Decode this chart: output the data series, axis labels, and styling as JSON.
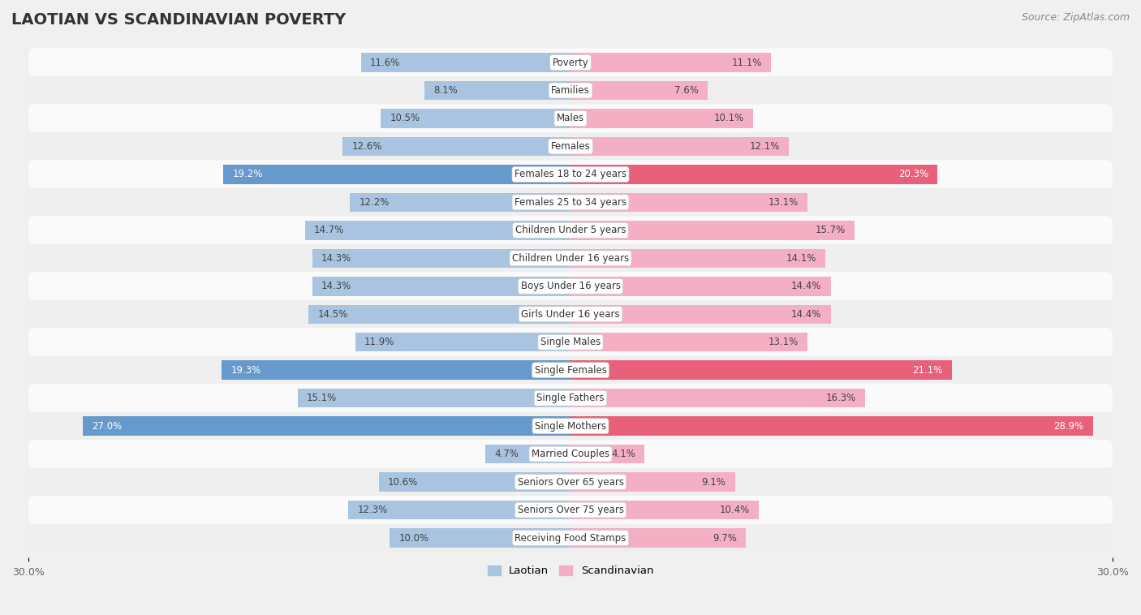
{
  "title": "LAOTIAN VS SCANDINAVIAN POVERTY",
  "source": "Source: ZipAtlas.com",
  "categories": [
    "Poverty",
    "Families",
    "Males",
    "Females",
    "Females 18 to 24 years",
    "Females 25 to 34 years",
    "Children Under 5 years",
    "Children Under 16 years",
    "Boys Under 16 years",
    "Girls Under 16 years",
    "Single Males",
    "Single Females",
    "Single Fathers",
    "Single Mothers",
    "Married Couples",
    "Seniors Over 65 years",
    "Seniors Over 75 years",
    "Receiving Food Stamps"
  ],
  "laotian": [
    11.6,
    8.1,
    10.5,
    12.6,
    19.2,
    12.2,
    14.7,
    14.3,
    14.3,
    14.5,
    11.9,
    19.3,
    15.1,
    27.0,
    4.7,
    10.6,
    12.3,
    10.0
  ],
  "scandinavian": [
    11.1,
    7.6,
    10.1,
    12.1,
    20.3,
    13.1,
    15.7,
    14.1,
    14.4,
    14.4,
    13.1,
    21.1,
    16.3,
    28.9,
    4.1,
    9.1,
    10.4,
    9.7
  ],
  "laotian_color_normal": "#a8c4e0",
  "scandinavian_color_normal": "#f4afc4",
  "laotian_color_highlight": "#6699cc",
  "scandinavian_color_highlight": "#e8607a",
  "highlight_rows": [
    4,
    11,
    13
  ],
  "xlim": 30.0,
  "background_color": "#f0f0f0",
  "row_color_light": "#fafafa",
  "row_color_dark": "#efefef",
  "title_fontsize": 14,
  "source_fontsize": 9,
  "label_fontsize": 8.5,
  "value_fontsize": 8.5,
  "bar_height": 0.68
}
